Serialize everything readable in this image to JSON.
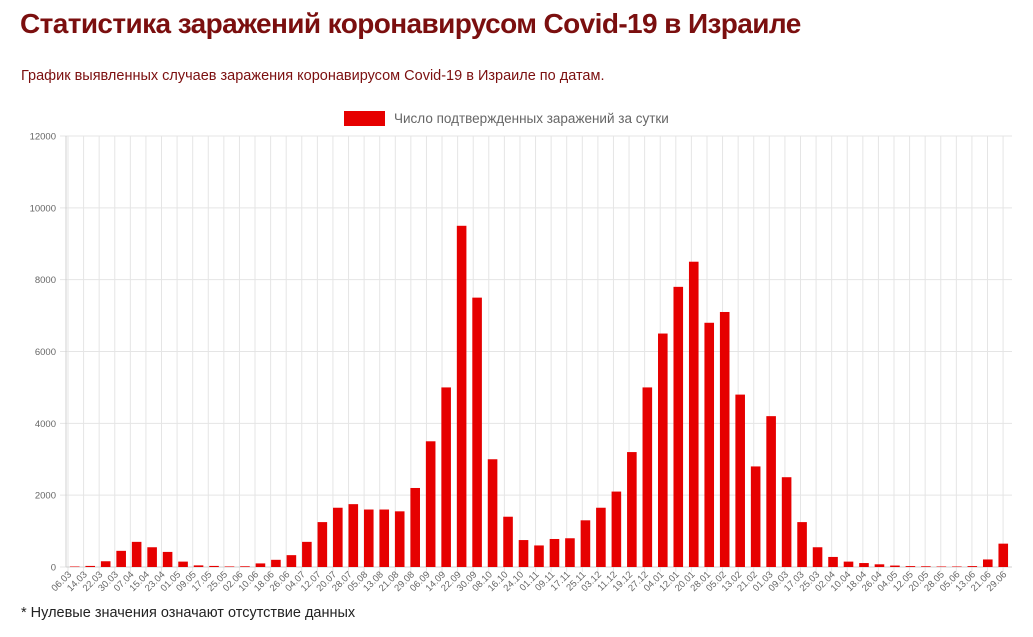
{
  "page": {
    "title": "Статистика заражений коронавирусом Covid-19 в Израиле",
    "subtitle": "График выявленных случаев заражения коронавирусом Covid-19 в Израиле по датам.",
    "footnote": "* Нулевые значения означают отсутствие данных"
  },
  "colors": {
    "title": "#7b0f0f",
    "bar": "#e60000",
    "grid": "#e5e5e5",
    "axis_text": "#666666"
  },
  "chart_data": {
    "type": "bar",
    "title": "",
    "xlabel": "",
    "ylabel": "",
    "legend": {
      "position": "top-center",
      "entries": [
        "Число подтвержденных заражений за сутки"
      ]
    },
    "ylim": [
      0,
      12000
    ],
    "y_ticks": [
      0,
      2000,
      4000,
      6000,
      8000,
      10000,
      12000
    ],
    "grid": true,
    "x_tick_labels": [
      "06.03",
      "14.03",
      "22.03",
      "30.03",
      "07.04",
      "15.04",
      "23.04",
      "01.05",
      "09.05",
      "17.05",
      "25.05",
      "02.06",
      "10.06",
      "18.06",
      "26.06",
      "04.07",
      "12.07",
      "20.07",
      "28.07",
      "05.08",
      "13.08",
      "21.08",
      "29.08",
      "06.09",
      "14.09",
      "22.09",
      "30.09",
      "08.10",
      "16.10",
      "24.10",
      "01.11",
      "09.11",
      "17.11",
      "25.11",
      "03.12",
      "11.12",
      "19.12",
      "27.12",
      "04.01",
      "12.01",
      "20.01",
      "28.01",
      "05.02",
      "13.02",
      "21.02",
      "01.03",
      "09.03",
      "17.03",
      "25.03",
      "02.04",
      "10.04",
      "18.04",
      "26.04",
      "04.05",
      "12.05",
      "20.05",
      "28.05",
      "05.06",
      "13.06",
      "21.06",
      "29.06"
    ],
    "series": [
      {
        "name": "Число подтвержденных заражений за сутки",
        "note": "values sampled every 4 days starting 06.03.2020 (last point 07.07.2021)",
        "values": [
          10,
          30,
          160,
          450,
          700,
          550,
          420,
          150,
          45,
          30,
          15,
          20,
          100,
          200,
          330,
          700,
          1250,
          1650,
          1750,
          1600,
          1600,
          1550,
          2200,
          3500,
          5000,
          9500,
          7500,
          3000,
          1400,
          750,
          600,
          780,
          800,
          1300,
          1650,
          2100,
          3200,
          5000,
          6500,
          7800,
          8500,
          6800,
          7100,
          4800,
          2800,
          4200,
          2500,
          1250,
          550,
          280,
          150,
          110,
          75,
          40,
          25,
          20,
          12,
          10,
          25,
          210,
          650
        ]
      }
    ]
  }
}
